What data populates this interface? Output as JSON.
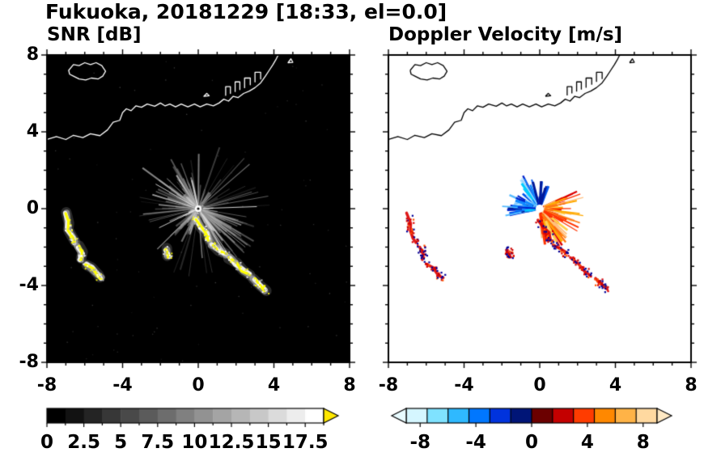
{
  "figure": {
    "title": "Fukuoka, 20181229 [18:33, el=0.0]"
  },
  "chart_data": [
    {
      "type": "heatmap",
      "title": "SNR [dB]",
      "xlabel": "",
      "ylabel": "",
      "xlim": [
        -8,
        8
      ],
      "ylim": [
        -8,
        8
      ],
      "xticks": [
        -8,
        -4,
        0,
        4,
        8
      ],
      "yticks": [
        8,
        4,
        0,
        -4,
        -8
      ],
      "minor_tick_interval": 1,
      "background_color": "#000000",
      "radar_center": [
        0,
        0
      ],
      "features": {
        "ray_count": 170,
        "ray_min_len": 0.2,
        "ray_max_len": 3.8,
        "bright_fans": [
          {
            "a0": 295,
            "a1": 345,
            "count": 55,
            "min_len": 0.8,
            "max_len": 3.4
          },
          {
            "a0": 100,
            "a1": 165,
            "count": 40,
            "min_len": 0.6,
            "max_len": 2.6
          },
          {
            "a0": 200,
            "a1": 250,
            "count": 25,
            "min_len": 0.4,
            "max_len": 2.0
          }
        ],
        "special_rays": [
          {
            "angle_deg": 2,
            "len": 3.1
          },
          {
            "angle_deg": 206,
            "len": 2.3
          },
          {
            "angle_deg": 150,
            "len": 2.6
          }
        ],
        "echo_core_color": "#ffff00",
        "echo_fringe_color": "#cccccc",
        "noise_dots": 90
      },
      "colorbar": {
        "tick_labels": [
          "0",
          "2.5",
          "5",
          "7.5",
          "10",
          "12.5",
          "15",
          "17.5"
        ],
        "tick_values": [
          0,
          2.5,
          5,
          7.5,
          10,
          12.5,
          15,
          17.5
        ],
        "range": [
          0,
          18.75
        ],
        "blocks": 15,
        "start_color": "#000000",
        "end_color": "#ffffff",
        "over_arrow_color": "#ffe800"
      }
    },
    {
      "type": "heatmap",
      "title": "Doppler Velocity [m/s]",
      "xlabel": "",
      "ylabel": "",
      "xlim": [
        -8,
        8
      ],
      "ylim": [
        -8,
        8
      ],
      "xticks": [
        -8,
        -4,
        0,
        4,
        8
      ],
      "yticks": [
        8,
        4,
        0,
        -4,
        -8
      ],
      "minor_tick_interval": 1,
      "background_color": "#ffffff",
      "radar_center": [
        0,
        0
      ],
      "features": {
        "fans": [
          {
            "angle_start": 95,
            "angle_end": 192,
            "count": 95,
            "min_len": 0.35,
            "max_len": 2.0,
            "colors": [
              "#a8e0ff",
              "#55bbff",
              "#1188ff",
              "#0055ee",
              "#0022cc",
              "#001a99",
              "#00ccff"
            ]
          },
          {
            "angle_start": 272,
            "angle_end": 385,
            "count": 120,
            "min_len": 0.35,
            "max_len": 2.4,
            "colors": [
              "#ffd24d",
              "#ffaa00",
              "#ff7711",
              "#ff3300",
              "#dd0000",
              "#ffc080"
            ]
          },
          {
            "angle_start": 60,
            "angle_end": 95,
            "count": 14,
            "min_len": 0.5,
            "max_len": 1.7,
            "colors": [
              "#0033cc",
              "#001a99",
              "#0055ee"
            ]
          }
        ],
        "echo_main_color": "#dd0000",
        "echo_speckle_colors": [
          "#dd0000",
          "#000099",
          "#ff5500",
          "#000099",
          "#cc0000"
        ],
        "center_hole_color": "#ffffff"
      },
      "colorbar": {
        "tick_labels": [
          "-8",
          "-4",
          "0",
          "4",
          "8"
        ],
        "tick_values": [
          -8,
          -4,
          0,
          4,
          8
        ],
        "range": [
          -9,
          9
        ],
        "segment_colors": [
          "#d5f6ff",
          "#7fe2ff",
          "#2fb9ff",
          "#0077ff",
          "#0033dd",
          "#001577",
          "#6b0000",
          "#c40000",
          "#ff3c00",
          "#ff8800",
          "#ffb347",
          "#ffd9a0"
        ],
        "under_arrow_color": "#e8fbff",
        "over_arrow_color": "#ffe9c4"
      }
    }
  ],
  "map": {
    "coastline": [
      [
        [
          -8,
          3.6
        ],
        [
          -7.5,
          3.75
        ],
        [
          -7,
          3.6
        ],
        [
          -6.6,
          3.82
        ],
        [
          -6.1,
          3.7
        ],
        [
          -5.7,
          3.9
        ],
        [
          -5.2,
          3.8
        ],
        [
          -4.8,
          4.1
        ],
        [
          -4.5,
          4.5
        ],
        [
          -4.15,
          4.6
        ],
        [
          -4,
          5
        ],
        [
          -3.8,
          5.2
        ],
        [
          -3.55,
          5.1
        ],
        [
          -3.3,
          5.35
        ],
        [
          -3,
          5.28
        ],
        [
          -2.7,
          5.45
        ],
        [
          -2.3,
          5.33
        ],
        [
          -2,
          5.5
        ],
        [
          -1.75,
          5.35
        ],
        [
          -1.5,
          5.45
        ],
        [
          -1.2,
          5.3
        ],
        [
          -0.9,
          5.45
        ],
        [
          -0.55,
          5.3
        ],
        [
          -0.2,
          5.45
        ],
        [
          0.1,
          5.3
        ],
        [
          0.45,
          5.45
        ],
        [
          0.8,
          5.35
        ],
        [
          1.1,
          5.5
        ],
        [
          1.35,
          5.7
        ],
        [
          1.6,
          5.6
        ],
        [
          1.85,
          5.85
        ],
        [
          2.1,
          5.78
        ],
        [
          2.4,
          6
        ],
        [
          2.7,
          6.12
        ],
        [
          3,
          6.3
        ],
        [
          3.3,
          6.55
        ],
        [
          3.55,
          6.9
        ],
        [
          3.75,
          7.2
        ],
        [
          3.95,
          7.5
        ],
        [
          4.1,
          7.75
        ],
        [
          4.25,
          8.05
        ]
      ],
      [
        [
          -6.85,
          7.2
        ],
        [
          -6.6,
          7.5
        ],
        [
          -6.3,
          7.45
        ],
        [
          -6,
          7.6
        ],
        [
          -5.7,
          7.5
        ],
        [
          -5.4,
          7.6
        ],
        [
          -5.1,
          7.45
        ],
        [
          -4.9,
          7.15
        ],
        [
          -5.05,
          6.9
        ],
        [
          -5.3,
          6.75
        ],
        [
          -5.65,
          6.8
        ],
        [
          -5.95,
          6.7
        ],
        [
          -6.3,
          6.75
        ],
        [
          -6.6,
          6.9
        ],
        [
          -6.8,
          7
        ],
        [
          -6.85,
          7.2
        ]
      ],
      [
        [
          1.45,
          5.9
        ],
        [
          1.45,
          6.35
        ],
        [
          1.7,
          6.35
        ],
        [
          1.7,
          6
        ]
      ],
      [
        [
          1.95,
          6.1
        ],
        [
          1.95,
          6.6
        ],
        [
          2.2,
          6.6
        ],
        [
          2.2,
          6.2
        ]
      ],
      [
        [
          2.45,
          6.3
        ],
        [
          2.45,
          6.8
        ],
        [
          2.75,
          6.8
        ],
        [
          2.75,
          6.45
        ]
      ],
      [
        [
          3,
          6.6
        ],
        [
          3,
          7.1
        ],
        [
          3.3,
          7.1
        ],
        [
          3.3,
          6.75
        ]
      ],
      [
        [
          0.3,
          5.85
        ],
        [
          0.45,
          6
        ],
        [
          0.58,
          5.88
        ],
        [
          0.3,
          5.85
        ]
      ],
      [
        [
          4.75,
          7.6
        ],
        [
          4.9,
          7.8
        ],
        [
          5,
          7.62
        ],
        [
          4.75,
          7.6
        ]
      ]
    ],
    "echo_arcs": [
      [
        [
          -7,
          -0.25
        ],
        [
          -6.85,
          -0.7
        ],
        [
          -6.9,
          -1.1
        ],
        [
          -6.65,
          -1.5
        ],
        [
          -6.55,
          -1.75
        ]
      ],
      [
        [
          -6.35,
          -2
        ],
        [
          -6.15,
          -2.3
        ],
        [
          -6.25,
          -2.6
        ]
      ],
      [
        [
          -5.95,
          -2.9
        ],
        [
          -5.6,
          -3.1
        ],
        [
          -5.3,
          -3.45
        ],
        [
          -5.15,
          -3.6
        ]
      ],
      [
        [
          -0.15,
          -0.55
        ],
        [
          0.15,
          -0.95
        ],
        [
          0.45,
          -1.25
        ],
        [
          0.55,
          -1.65
        ]
      ],
      [
        [
          0.75,
          -1.85
        ],
        [
          1.1,
          -2.15
        ],
        [
          1.45,
          -2.35
        ]
      ],
      [
        [
          1.65,
          -2.55
        ],
        [
          2,
          -2.85
        ],
        [
          2.35,
          -3.2
        ],
        [
          2.7,
          -3.45
        ]
      ],
      [
        [
          2.95,
          -3.65
        ],
        [
          3.25,
          -3.95
        ],
        [
          3.55,
          -4.25
        ]
      ],
      [
        [
          -1.7,
          -2.1
        ],
        [
          -1.6,
          -2.45
        ]
      ]
    ]
  }
}
